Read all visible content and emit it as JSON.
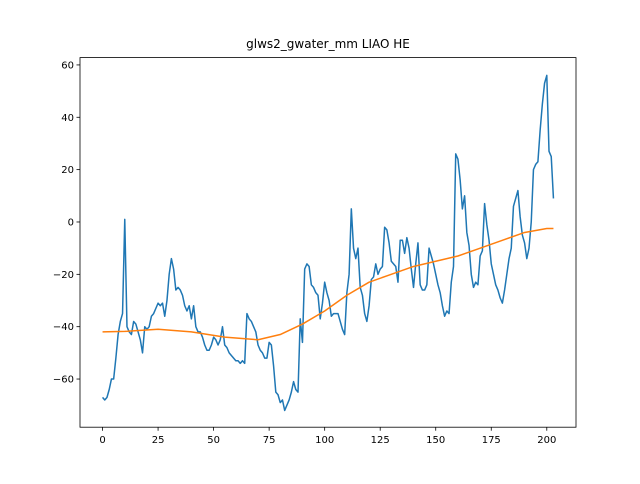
{
  "chart_data": {
    "type": "line",
    "title": "glws2_gwater_mm LIAO HE",
    "xlim": [
      -10.15,
      213.15
    ],
    "ylim": [
      -78.4,
      62.8
    ],
    "xticks": [
      0,
      25,
      50,
      75,
      100,
      125,
      150,
      175,
      200
    ],
    "yticks": [
      {
        "value": -60,
        "label": "−60"
      },
      {
        "value": -40,
        "label": "−40"
      },
      {
        "value": -20,
        "label": "−20"
      },
      0,
      20,
      40,
      60
    ],
    "series": [
      {
        "color": "#1f77b4",
        "x": [
          0,
          1,
          2,
          3,
          4,
          5,
          6,
          7,
          8,
          9,
          10,
          11,
          12,
          13,
          14,
          15,
          16,
          17,
          18,
          19,
          20,
          21,
          22,
          23,
          24,
          25,
          26,
          27,
          28,
          29,
          30,
          31,
          32,
          33,
          34,
          35,
          36,
          37,
          38,
          39,
          40,
          41,
          42,
          43,
          44,
          45,
          46,
          47,
          48,
          49,
          50,
          51,
          52,
          53,
          54,
          55,
          56,
          57,
          58,
          59,
          60,
          61,
          62,
          63,
          64,
          65,
          66,
          67,
          68,
          69,
          70,
          71,
          72,
          73,
          74,
          75,
          76,
          77,
          78,
          79,
          80,
          81,
          82,
          83,
          84,
          85,
          86,
          87,
          88,
          89,
          90,
          91,
          92,
          93,
          94,
          95,
          96,
          97,
          98,
          99,
          100,
          101,
          102,
          103,
          104,
          105,
          106,
          107,
          108,
          109,
          110,
          111,
          112,
          113,
          114,
          115,
          116,
          117,
          118,
          119,
          120,
          121,
          122,
          123,
          124,
          125,
          126,
          127,
          128,
          129,
          130,
          131,
          132,
          133,
          134,
          135,
          136,
          137,
          138,
          139,
          140,
          141,
          142,
          143,
          144,
          145,
          146,
          147,
          148,
          149,
          150,
          151,
          152,
          153,
          154,
          155,
          156,
          157,
          158,
          159,
          160,
          161,
          162,
          163,
          164,
          165,
          166,
          167,
          168,
          169,
          170,
          171,
          172,
          173,
          174,
          175,
          176,
          177,
          178,
          179,
          180,
          181,
          182,
          183,
          184,
          185,
          186,
          187,
          188,
          189,
          190,
          191,
          192,
          193,
          194,
          195,
          196,
          197,
          198,
          199,
          200,
          201,
          202,
          203
        ],
        "values": [
          -67,
          -68,
          -67,
          -64,
          -60,
          -60,
          -52,
          -43,
          -38,
          -35,
          1,
          -40,
          -42,
          -43,
          -38,
          -39,
          -42,
          -45,
          -50,
          -40,
          -41,
          -40,
          -36,
          -35,
          -33,
          -31,
          -32,
          -31,
          -36,
          -30,
          -20,
          -14,
          -18,
          -26,
          -25,
          -26,
          -28,
          -32,
          -34,
          -32,
          -37,
          -32,
          -40,
          -42,
          -42,
          -44,
          -47,
          -49,
          -49,
          -47,
          -44,
          -45,
          -47,
          -45,
          -40,
          -47,
          -48,
          -50,
          -51,
          -52,
          -53,
          -53,
          -54,
          -53,
          -54,
          -35,
          -37,
          -38,
          -40,
          -42,
          -47,
          -49,
          -50,
          -52,
          -52,
          -46,
          -47,
          -55,
          -65,
          -66,
          -69,
          -68,
          -72,
          -70,
          -68,
          -65,
          -61,
          -64,
          -65,
          -37,
          -46,
          -18,
          -16,
          -17,
          -24,
          -25,
          -27,
          -28,
          -37,
          -31,
          -23,
          -27,
          -30,
          -36,
          -35,
          -35,
          -35,
          -38,
          -41,
          -43,
          -27,
          -20,
          5,
          -10,
          -14,
          -10,
          -25,
          -28,
          -35,
          -38,
          -32,
          -22,
          -21,
          -16,
          -20,
          -18,
          -17,
          -2,
          -3,
          -8,
          -15,
          -16,
          -17,
          -23,
          -7,
          -7,
          -12,
          -6,
          -10,
          -18,
          -25,
          -16,
          -8,
          -24,
          -26,
          -26,
          -24,
          -10,
          -13,
          -16,
          -20,
          -24,
          -27,
          -32,
          -36,
          -34,
          -35,
          -23,
          -17,
          26,
          24,
          16,
          5,
          10,
          -4,
          -9,
          -20,
          -25,
          -23,
          -24,
          -13,
          -11,
          7,
          -1,
          -7,
          -16,
          -20,
          -24,
          -26,
          -29,
          -31,
          -26,
          -20,
          -14,
          -10,
          6,
          9,
          12,
          2,
          -5,
          -8,
          -14,
          -10,
          0,
          20,
          22,
          23,
          35,
          45,
          53,
          56,
          27,
          25,
          9
        ]
      },
      {
        "color": "#ff7f0e",
        "x": [
          0,
          10,
          25,
          40,
          55,
          70,
          80,
          90,
          100,
          110,
          120,
          130,
          140,
          150,
          160,
          170,
          180,
          190,
          200,
          203
        ],
        "values": [
          -42,
          -41.8,
          -41,
          -42,
          -44,
          -45,
          -43,
          -39,
          -34,
          -28,
          -23,
          -20,
          -17,
          -15,
          -13,
          -10,
          -7,
          -4,
          -2.5,
          -2.5
        ]
      }
    ]
  }
}
